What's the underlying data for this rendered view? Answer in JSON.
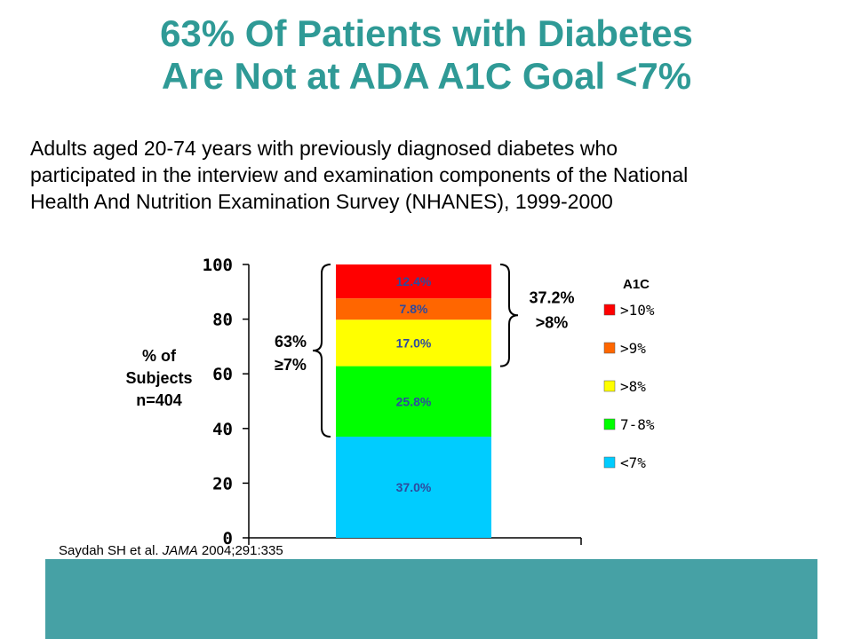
{
  "title": {
    "line1": "63% Of Patients with Diabetes",
    "line2": "Are Not at ADA A1C Goal <7%"
  },
  "subtitle": {
    "line1": "Adults aged 20-74 years with previously diagnosed diabetes who",
    "line2": "participated in the interview and examination components of the National",
    "line3": "Health And Nutrition Examination Survey (NHANES), 1999-2000"
  },
  "citation": {
    "authors": "Saydah SH et al. ",
    "journal": "JAMA",
    "ref": " 2004;291:335"
  },
  "colors": {
    "title": "#2f9a96",
    "teal_bar": "#46a1a5",
    "lt7": "#00ccff",
    "7to8": "#00ff00",
    "gt8": "#ffff00",
    "gt9": "#ff6600",
    "gt10": "#ff0000",
    "data_label": "#2e4a9e"
  },
  "chart_data": {
    "type": "bar",
    "stacked": true,
    "categories": [
      ""
    ],
    "ylim": [
      0,
      100
    ],
    "yticks": [
      "0",
      "20",
      "40",
      "60",
      "80",
      "100"
    ],
    "ylabel": {
      "line1": "% of",
      "line2": "Subjects",
      "line3": "n=404"
    },
    "segments": [
      {
        "name": "<7%",
        "value": 37.0,
        "label": "37.0%",
        "color": "#00ccff"
      },
      {
        "name": "7-8%",
        "value": 25.8,
        "label": "25.8%",
        "color": "#00ff00"
      },
      {
        "name": ">8%",
        "value": 17.0,
        "label": "17.0%",
        "color": "#ffff00"
      },
      {
        "name": ">9%",
        "value": 7.8,
        "label": "7.8%",
        "color": "#ff6600"
      },
      {
        "name": ">10%",
        "value": 12.4,
        "label": "12.4%",
        "color": "#ff0000"
      }
    ],
    "legend": {
      "title": "A1C",
      "position": "right",
      "items": [
        {
          "label": ">10%",
          "color": "#ff0000"
        },
        {
          "label": ">9%",
          "color": "#ff6600"
        },
        {
          "label": ">8%",
          "color": "#ffff00"
        },
        {
          "label": "7-8%",
          "color": "#00ff00"
        },
        {
          "label": "<7%",
          "color": "#00ccff"
        }
      ]
    },
    "annotations": {
      "left_brace": {
        "line1": "63%",
        "line2": "≥7%",
        "from": 37.0,
        "to": 100
      },
      "right_brace": {
        "line1": "37.2%",
        "line2": ">8%",
        "from": 62.8,
        "to": 100
      }
    }
  }
}
